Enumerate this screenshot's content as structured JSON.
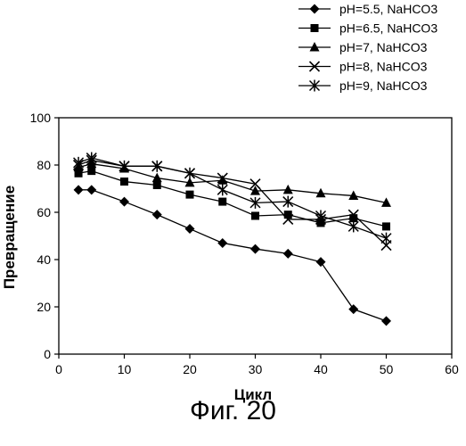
{
  "chart_data": {
    "type": "line",
    "xlabel": "Цикл",
    "ylabel": "Превращение",
    "xlim": [
      0,
      60
    ],
    "ylim": [
      0,
      100
    ],
    "xticks": [
      0,
      10,
      20,
      30,
      40,
      50,
      60
    ],
    "yticks": [
      0,
      20,
      40,
      60,
      80,
      100
    ],
    "grid": false,
    "legend_position": "top-right, above plot",
    "series": [
      {
        "name": "pH=5.5, NaHCO3",
        "marker": "diamond",
        "x": [
          3,
          5,
          10,
          15,
          20,
          25,
          30,
          35,
          40,
          45,
          50
        ],
        "y": [
          69.5,
          69.5,
          64.5,
          59,
          53,
          47,
          44.5,
          42.5,
          39,
          19,
          14
        ]
      },
      {
        "name": "pH=6.5, NaHCO3",
        "marker": "square",
        "x": [
          3,
          5,
          10,
          15,
          20,
          25,
          30,
          35,
          40,
          45,
          50
        ],
        "y": [
          76.5,
          77.5,
          73,
          71.5,
          67.5,
          64.5,
          58.5,
          59,
          55.5,
          57.5,
          54
        ]
      },
      {
        "name": "pH=7, NaHCO3",
        "marker": "triangle",
        "x": [
          3,
          5,
          10,
          15,
          20,
          25,
          30,
          35,
          40,
          45,
          50
        ],
        "y": [
          79,
          80.5,
          78.5,
          74.5,
          72.5,
          73.5,
          69,
          69.5,
          68,
          67,
          64
        ]
      },
      {
        "name": "pH=8, NaHCO3",
        "marker": "x",
        "x": [
          3,
          5,
          10,
          15,
          20,
          25,
          30,
          35,
          40,
          45,
          50
        ],
        "y": [
          80,
          82,
          79.5,
          79.5,
          76.5,
          74.5,
          72,
          57,
          57,
          59,
          46
        ]
      },
      {
        "name": "pH=9, NaHCO3",
        "marker": "asterisk",
        "x": [
          3,
          5,
          10,
          15,
          20,
          25,
          30,
          35,
          40,
          45,
          50
        ],
        "y": [
          81,
          83,
          79.5,
          79.5,
          76.5,
          69.5,
          64,
          64.5,
          58.5,
          54,
          49
        ]
      }
    ]
  },
  "figure_caption": "Фиг. 20"
}
